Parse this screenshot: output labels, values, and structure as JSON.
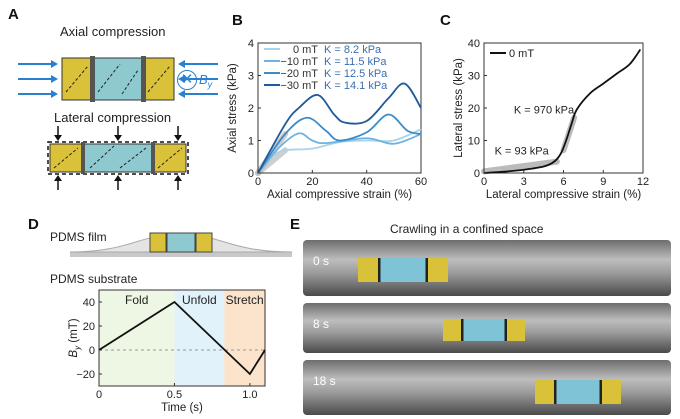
{
  "panels": {
    "A": "A",
    "B": "B",
    "C": "C",
    "D": "D",
    "E": "E"
  },
  "panelA": {
    "axial": "Axial compression",
    "lateral": "Lateral compression",
    "field": "B",
    "field_sub": "y"
  },
  "panelD": {
    "film": "PDMS film",
    "substrate": "PDMS substrate"
  },
  "panelE": {
    "title": "Crawling in a confined space",
    "frames": [
      "0 s",
      "8 s",
      "18 s"
    ]
  },
  "colors": {
    "yellow": "#d9c23a",
    "cyan": "#8fc9d0",
    "arrow": "#2a7fd0",
    "c0": "#a8d4ee",
    "c10": "#6fb3e0",
    "c20": "#3b8cc8",
    "c30": "#1f5a9e"
  },
  "chart_data": [
    {
      "id": "B",
      "type": "line",
      "xlabel": "Axial compressive strain (%)",
      "ylabel": "Axial stress (kPa)",
      "xlim": [
        0,
        60
      ],
      "ylim": [
        0,
        4
      ],
      "xticks": [
        0,
        20,
        40,
        60
      ],
      "yticks": [
        0,
        1,
        2,
        3,
        4
      ],
      "legend": "top-left",
      "series": [
        {
          "name": "0 mT",
          "K": "K = 8.2 kPa",
          "color": "#a8d4ee",
          "x": [
            0,
            5,
            10,
            20,
            30,
            40,
            50,
            60
          ],
          "y": [
            0,
            0.5,
            0.7,
            0.75,
            0.95,
            1.0,
            1.0,
            1.35
          ]
        },
        {
          "name": "−10 mT",
          "K": "K = 11.5 kPa",
          "color": "#6fb3e0",
          "x": [
            0,
            8,
            15,
            20,
            25,
            40,
            50,
            60
          ],
          "y": [
            0,
            0.8,
            1.22,
            1.0,
            0.92,
            1.07,
            0.9,
            1.2
          ]
        },
        {
          "name": "−20 mT",
          "K": "K = 12.5 kPa",
          "color": "#3b8cc8",
          "x": [
            0,
            10,
            18,
            25,
            30,
            40,
            48,
            55,
            60
          ],
          "y": [
            0,
            1.2,
            1.7,
            1.3,
            1.0,
            1.25,
            1.8,
            1.3,
            1.2
          ]
        },
        {
          "name": "−30 mT",
          "K": "K = 14.1 kPa",
          "color": "#1f5a9e",
          "x": [
            0,
            10,
            15,
            22,
            28,
            32,
            40,
            48,
            54,
            60
          ],
          "y": [
            0,
            1.5,
            2.0,
            2.4,
            1.8,
            1.55,
            1.6,
            2.3,
            2.75,
            2.0
          ]
        }
      ]
    },
    {
      "id": "C",
      "type": "line",
      "xlabel": "Lateral compressive strain (%)",
      "ylabel": "Lateral stress (kPa)",
      "xlim": [
        0,
        12
      ],
      "ylim": [
        0,
        40
      ],
      "xticks": [
        0,
        3,
        6,
        9,
        12
      ],
      "yticks": [
        0,
        10,
        20,
        30,
        40
      ],
      "legend": "top-left",
      "annotations": [
        "K = 970 kPa",
        "K = 93 kPa"
      ],
      "series": [
        {
          "name": "0 mT",
          "color": "#111111",
          "x": [
            0,
            1.5,
            3,
            4.5,
            5.3,
            5.8,
            6.2,
            6.6,
            7,
            8,
            9,
            10,
            11,
            11.8
          ],
          "y": [
            0,
            0.4,
            1,
            2,
            3.5,
            6,
            10,
            15,
            19.5,
            24.5,
            27.5,
            30.5,
            33.5,
            38
          ]
        }
      ]
    },
    {
      "id": "D",
      "type": "line",
      "xlabel": "Time (s)",
      "ylabel": "B_y (mT)",
      "xlim": [
        0,
        1.1
      ],
      "ylim": [
        -30,
        50
      ],
      "xticks": [
        0,
        0.5,
        1.0
      ],
      "xticklabels": [
        "0",
        "0.5",
        "1.0"
      ],
      "yticks": [
        -20,
        0,
        20,
        40
      ],
      "regions": [
        {
          "label": "Fold",
          "from": 0,
          "to": 0.5,
          "color": "#eef6e4"
        },
        {
          "label": "Unfold",
          "from": 0.5,
          "to": 0.83,
          "color": "#e2f2fb"
        },
        {
          "label": "Stretch",
          "from": 0.83,
          "to": 1.1,
          "color": "#fbe3cc"
        }
      ],
      "series": [
        {
          "color": "#111111",
          "x": [
            0,
            0.5,
            1.0,
            1.1
          ],
          "y": [
            0,
            40,
            -20,
            0
          ]
        }
      ]
    }
  ]
}
